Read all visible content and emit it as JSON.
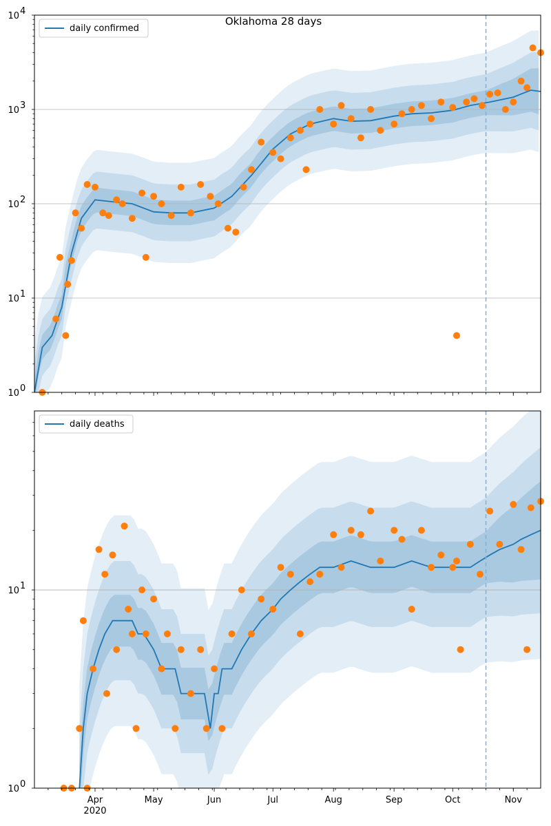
{
  "chart_data": [
    {
      "type": "line",
      "title": "Oklahoma 28 days",
      "yscale": "log",
      "ylim": [
        1,
        10000
      ],
      "xlim": [
        "2020-03-01",
        "2020-11-15"
      ],
      "grid": "horizontal major",
      "legend": {
        "placement": "top-left",
        "entries": [
          "daily confirmed"
        ]
      },
      "yticks": [
        {
          "value": 1,
          "label": "10",
          "exp": "0"
        },
        {
          "value": 10,
          "label": "10",
          "exp": "1"
        },
        {
          "value": 100,
          "label": "10",
          "exp": "2"
        },
        {
          "value": 1000,
          "label": "10",
          "exp": "3"
        },
        {
          "value": 10000,
          "label": "10",
          "exp": "4"
        }
      ],
      "vline": {
        "x": "2020-10-18",
        "style": "dashed",
        "color": "#7fb2d9"
      },
      "colors": {
        "line": "#1f77b4",
        "points": "#ff7f0e",
        "band": "#1f77b4"
      },
      "series": [
        {
          "name": "daily confirmed",
          "kind": "line",
          "x": [
            "2020-03-01",
            "2020-03-05",
            "2020-03-10",
            "2020-03-15",
            "2020-03-20",
            "2020-03-25",
            "2020-04-01",
            "2020-04-10",
            "2020-04-20",
            "2020-05-01",
            "2020-05-10",
            "2020-05-20",
            "2020-06-01",
            "2020-06-10",
            "2020-06-20",
            "2020-07-01",
            "2020-07-10",
            "2020-07-20",
            "2020-08-01",
            "2020-08-10",
            "2020-08-20",
            "2020-09-01",
            "2020-09-10",
            "2020-09-20",
            "2020-10-01",
            "2020-10-10",
            "2020-10-20",
            "2020-11-01",
            "2020-11-10",
            "2020-11-15"
          ],
          "y": [
            1,
            3,
            4,
            8,
            30,
            70,
            110,
            105,
            100,
            82,
            80,
            80,
            90,
            120,
            200,
            380,
            550,
            700,
            800,
            750,
            760,
            850,
            900,
            920,
            980,
            1100,
            1200,
            1350,
            1600,
            1550
          ]
        },
        {
          "name": "observed",
          "kind": "scatter",
          "x": [
            "2020-03-05",
            "2020-03-12",
            "2020-03-14",
            "2020-03-17",
            "2020-03-18",
            "2020-03-20",
            "2020-03-22",
            "2020-03-25",
            "2020-03-28",
            "2020-04-01",
            "2020-04-05",
            "2020-04-08",
            "2020-04-12",
            "2020-04-15",
            "2020-04-20",
            "2020-04-25",
            "2020-04-27",
            "2020-05-01",
            "2020-05-05",
            "2020-05-10",
            "2020-05-15",
            "2020-05-20",
            "2020-05-25",
            "2020-05-30",
            "2020-06-03",
            "2020-06-08",
            "2020-06-12",
            "2020-06-16",
            "2020-06-20",
            "2020-06-25",
            "2020-07-01",
            "2020-07-05",
            "2020-07-10",
            "2020-07-15",
            "2020-07-18",
            "2020-07-20",
            "2020-07-25",
            "2020-08-01",
            "2020-08-05",
            "2020-08-10",
            "2020-08-15",
            "2020-08-20",
            "2020-08-25",
            "2020-09-01",
            "2020-09-05",
            "2020-09-10",
            "2020-09-15",
            "2020-09-20",
            "2020-09-25",
            "2020-10-01",
            "2020-10-03",
            "2020-10-08",
            "2020-10-12",
            "2020-10-16",
            "2020-10-20",
            "2020-10-24",
            "2020-10-28",
            "2020-11-01",
            "2020-11-05",
            "2020-11-08",
            "2020-11-11",
            "2020-11-15"
          ],
          "y": [
            1,
            6,
            27,
            4,
            14,
            25,
            80,
            55,
            160,
            150,
            80,
            75,
            110,
            100,
            70,
            130,
            27,
            120,
            100,
            75,
            150,
            80,
            160,
            120,
            100,
            55,
            50,
            150,
            230,
            450,
            350,
            300,
            500,
            600,
            230,
            700,
            1000,
            700,
            1100,
            800,
            500,
            1000,
            600,
            700,
            900,
            1000,
            1100,
            800,
            1200,
            1050,
            4,
            1200,
            1300,
            1100,
            1450,
            1500,
            1000,
            1200,
            2000,
            1700,
            4500,
            4000
          ]
        }
      ]
    },
    {
      "type": "line",
      "yscale": "log",
      "ylim": [
        1,
        80
      ],
      "xlim": [
        "2020-03-01",
        "2020-11-15"
      ],
      "grid": "horizontal major",
      "legend": {
        "placement": "top-left",
        "entries": [
          "daily deaths"
        ]
      },
      "yticks": [
        {
          "value": 1,
          "label": "10",
          "exp": "0"
        },
        {
          "value": 10,
          "label": "10",
          "exp": "1"
        }
      ],
      "xticks": [
        {
          "date": "2020-04-01",
          "label": "Apr",
          "sub": "2020"
        },
        {
          "date": "2020-05-01",
          "label": "May"
        },
        {
          "date": "2020-06-01",
          "label": "Jun"
        },
        {
          "date": "2020-07-01",
          "label": "Jul"
        },
        {
          "date": "2020-08-01",
          "label": "Aug"
        },
        {
          "date": "2020-09-01",
          "label": "Sep"
        },
        {
          "date": "2020-10-01",
          "label": "Oct"
        },
        {
          "date": "2020-11-01",
          "label": "Nov"
        }
      ],
      "vline": {
        "x": "2020-10-18",
        "style": "dashed",
        "color": "#7fb2d9"
      },
      "colors": {
        "line": "#1f77b4",
        "points": "#ff7f0e",
        "band": "#1f77b4"
      },
      "series": [
        {
          "name": "daily deaths",
          "kind": "line",
          "x": [
            "2020-03-24",
            "2020-03-26",
            "2020-03-28",
            "2020-03-31",
            "2020-04-03",
            "2020-04-06",
            "2020-04-10",
            "2020-04-20",
            "2020-04-23",
            "2020-04-26",
            "2020-05-01",
            "2020-05-05",
            "2020-05-12",
            "2020-05-15",
            "2020-05-25",
            "2020-05-27",
            "2020-05-30",
            "2020-06-01",
            "2020-06-03",
            "2020-06-05",
            "2020-06-10",
            "2020-06-15",
            "2020-06-20",
            "2020-06-25",
            "2020-07-01",
            "2020-07-05",
            "2020-07-10",
            "2020-07-15",
            "2020-07-20",
            "2020-07-25",
            "2020-08-01",
            "2020-08-10",
            "2020-08-20",
            "2020-09-01",
            "2020-09-10",
            "2020-09-20",
            "2020-10-01",
            "2020-10-10",
            "2020-10-15",
            "2020-10-20",
            "2020-10-25",
            "2020-11-01",
            "2020-11-05",
            "2020-11-10",
            "2020-11-15"
          ],
          "y": [
            1,
            2,
            3,
            4,
            5,
            6,
            7,
            7,
            6,
            6,
            5,
            4,
            4,
            3,
            3,
            3,
            2,
            3,
            3,
            4,
            4,
            5,
            6,
            7,
            8,
            9,
            10,
            11,
            12,
            13,
            13,
            14,
            13,
            13,
            14,
            13,
            13,
            13,
            14,
            15,
            16,
            17,
            18,
            19,
            20
          ]
        },
        {
          "name": "observed",
          "kind": "scatter",
          "x": [
            "2020-03-16",
            "2020-03-20",
            "2020-03-24",
            "2020-03-26",
            "2020-03-28",
            "2020-03-31",
            "2020-04-03",
            "2020-04-06",
            "2020-04-07",
            "2020-04-10",
            "2020-04-12",
            "2020-04-16",
            "2020-04-18",
            "2020-04-20",
            "2020-04-22",
            "2020-04-25",
            "2020-04-27",
            "2020-05-01",
            "2020-05-05",
            "2020-05-08",
            "2020-05-12",
            "2020-05-15",
            "2020-05-20",
            "2020-05-25",
            "2020-05-28",
            "2020-06-01",
            "2020-06-05",
            "2020-06-10",
            "2020-06-15",
            "2020-06-20",
            "2020-06-25",
            "2020-07-01",
            "2020-07-05",
            "2020-07-10",
            "2020-07-15",
            "2020-07-20",
            "2020-07-25",
            "2020-08-01",
            "2020-08-05",
            "2020-08-10",
            "2020-08-15",
            "2020-08-20",
            "2020-08-25",
            "2020-09-01",
            "2020-09-05",
            "2020-09-10",
            "2020-09-15",
            "2020-09-20",
            "2020-09-25",
            "2020-10-01",
            "2020-10-03",
            "2020-10-05",
            "2020-10-10",
            "2020-10-15",
            "2020-10-20",
            "2020-10-25",
            "2020-11-01",
            "2020-11-05",
            "2020-11-08",
            "2020-11-10",
            "2020-11-15"
          ],
          "y": [
            1,
            1,
            2,
            7,
            1,
            4,
            16,
            12,
            3,
            15,
            5,
            21,
            8,
            6,
            2,
            10,
            6,
            9,
            4,
            6,
            2,
            5,
            3,
            5,
            2,
            4,
            2,
            6,
            10,
            6,
            9,
            8,
            13,
            12,
            6,
            11,
            12,
            19,
            13,
            20,
            19,
            25,
            14,
            20,
            18,
            8,
            20,
            13,
            15,
            13,
            14,
            5,
            17,
            12,
            25,
            17,
            27,
            16,
            5,
            26,
            28
          ]
        }
      ]
    }
  ]
}
